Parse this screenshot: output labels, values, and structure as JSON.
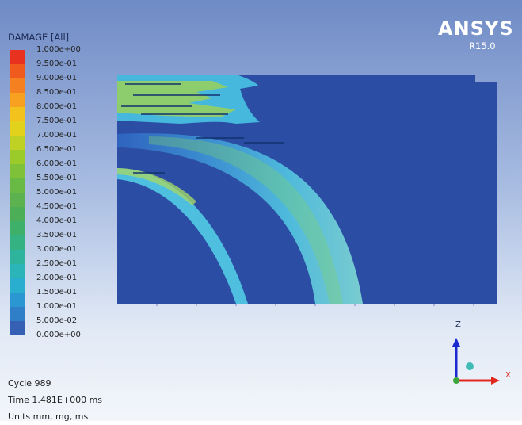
{
  "legend": {
    "title": "DAMAGE [All]",
    "levels": [
      {
        "label": "1.000e+00",
        "color": "#e8321f"
      },
      {
        "label": "9.500e-01",
        "color": "#f05a1c"
      },
      {
        "label": "9.000e-01",
        "color": "#f5801f"
      },
      {
        "label": "8.500e-01",
        "color": "#f8a020"
      },
      {
        "label": "8.000e-01",
        "color": "#f4c21d"
      },
      {
        "label": "7.500e-01",
        "color": "#e2d21c"
      },
      {
        "label": "7.000e-01",
        "color": "#bfd125"
      },
      {
        "label": "6.500e-01",
        "color": "#9acb2b"
      },
      {
        "label": "6.000e-01",
        "color": "#7fc23a"
      },
      {
        "label": "5.500e-01",
        "color": "#69b945"
      },
      {
        "label": "5.000e-01",
        "color": "#5bb24f"
      },
      {
        "label": "4.500e-01",
        "color": "#4caf58"
      },
      {
        "label": "4.000e-01",
        "color": "#3fb06a"
      },
      {
        "label": "3.500e-01",
        "color": "#34b282"
      },
      {
        "label": "3.000e-01",
        "color": "#2eb49c"
      },
      {
        "label": "2.500e-01",
        "color": "#2cb5b8"
      },
      {
        "label": "2.000e-01",
        "color": "#2aaed0"
      },
      {
        "label": "1.500e-01",
        "color": "#2a97d2"
      },
      {
        "label": "1.000e-01",
        "color": "#2f7fc8"
      },
      {
        "label": "5.000e-02",
        "color": "#3560b4"
      }
    ],
    "last_label": "0.000e+00"
  },
  "brand": {
    "name": "ANSYS",
    "version": "R15.0"
  },
  "axes": {
    "z": "Z",
    "x": "X"
  },
  "info": {
    "cycle": "Cycle 989",
    "time": "Time 1.481E+000 ms",
    "units": "Units mm, mg, ms"
  },
  "colors": {
    "background_top": "#6f8bc6",
    "model_base": "#2b4ea4",
    "damage_low": "#3d8fd0",
    "damage_mid": "#49c2e0",
    "damage_high": "#9ad05a"
  }
}
